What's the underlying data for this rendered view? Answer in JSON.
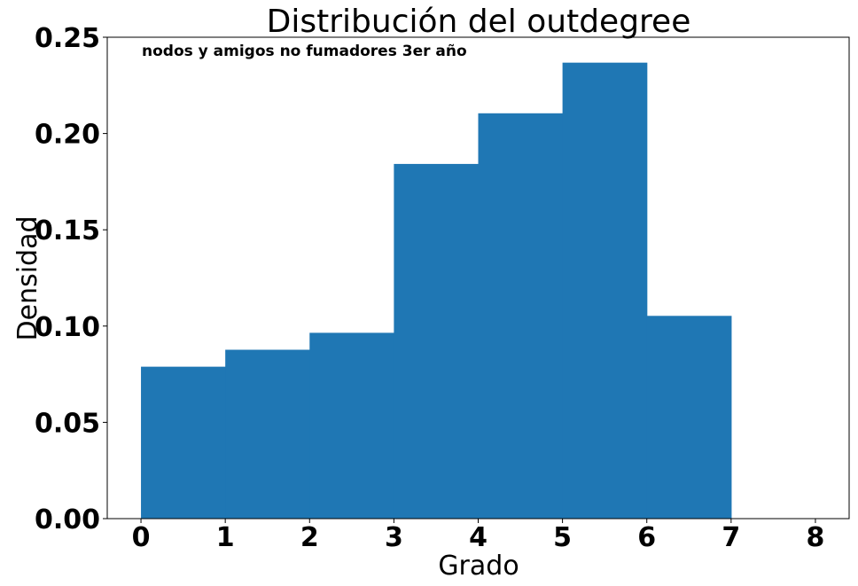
{
  "chart_data": {
    "type": "bar",
    "title": "Distribución del outdegree",
    "annotation": "nodos y amigos no fumadores 3er año",
    "xlabel": "Grado",
    "ylabel": "Densidad",
    "bins": [
      {
        "start": 0,
        "end": 1,
        "value": 0.0789
      },
      {
        "start": 1,
        "end": 2,
        "value": 0.0877
      },
      {
        "start": 2,
        "end": 3,
        "value": 0.0965
      },
      {
        "start": 3,
        "end": 4,
        "value": 0.1842
      },
      {
        "start": 4,
        "end": 5,
        "value": 0.2105
      },
      {
        "start": 5,
        "end": 6,
        "value": 0.2368
      },
      {
        "start": 6,
        "end": 7,
        "value": 0.1053
      }
    ],
    "xlim": [
      -0.4,
      8.4
    ],
    "ylim": [
      0,
      0.25
    ],
    "xticks": [
      0,
      1,
      2,
      3,
      4,
      5,
      6,
      7,
      8
    ],
    "xtick_labels": [
      "0",
      "1",
      "2",
      "3",
      "4",
      "5",
      "6",
      "7",
      "8"
    ],
    "yticks": [
      0,
      0.05,
      0.1,
      0.15,
      0.2,
      0.25
    ],
    "ytick_labels": [
      "0.00",
      "0.05",
      "0.10",
      "0.15",
      "0.20",
      "0.25"
    ],
    "bar_color": "#1f77b4",
    "grid": false,
    "legend": "none"
  }
}
